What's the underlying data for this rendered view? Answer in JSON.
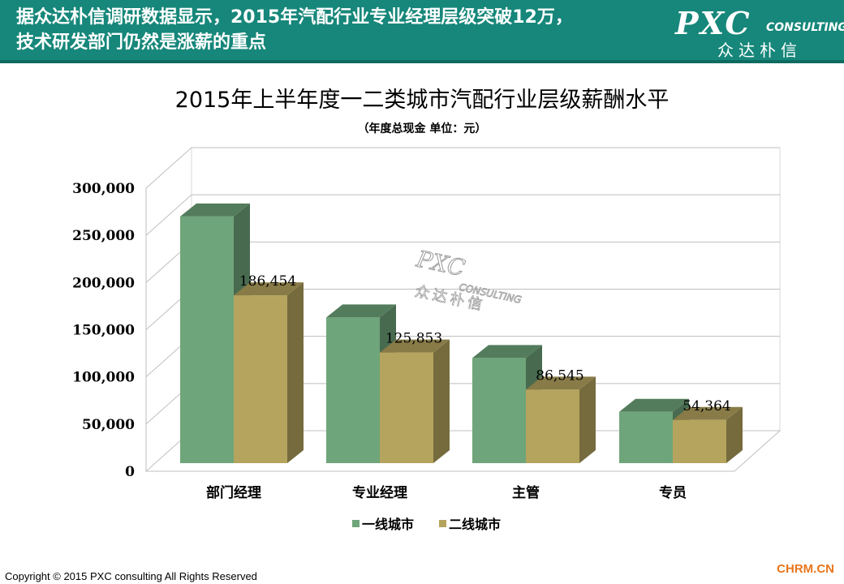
{
  "header": {
    "line1": "据众达朴信调研数据显示，2015年汽配行业专业经理层级突破12万，",
    "line2": "技术研发部门仍然是涨薪的重点"
  },
  "brand": {
    "name": "PXC",
    "consulting": "CONSULTING",
    "cn": "众达朴信"
  },
  "colors": {
    "banner": "#16877a",
    "series1": "#6fa57a",
    "series2": "#b5a45e"
  },
  "chart_data": {
    "type": "bar",
    "title": "2015年上半年度一二类城市汽配行业层级薪酬水平",
    "subtitle": "（年度总现金 单位：元）",
    "categories": [
      "部门经理",
      "专业经理",
      "主管",
      "专员"
    ],
    "series": [
      {
        "name": "一线城市",
        "values": [
          270000,
          163000,
          120000,
          63000
        ]
      },
      {
        "name": "二线城市",
        "values": [
          186454,
          125853,
          86545,
          54364
        ],
        "labels": [
          "186,454",
          "125,853",
          "86,545",
          "54,364"
        ]
      }
    ],
    "yticks": [
      "0",
      "50,000",
      "100,000",
      "150,000",
      "200,000",
      "250,000",
      "300,000"
    ],
    "ylim": [
      0,
      300000
    ],
    "grid": true,
    "legend": "bottom",
    "watermark": {
      "main": "PXC",
      "sub": "CONSULTING",
      "cn": "众达朴信"
    }
  },
  "footer": {
    "copyright": "Copyright © 2015  PXC consulting All Rights Reserved",
    "site": "CHRM.CN"
  }
}
